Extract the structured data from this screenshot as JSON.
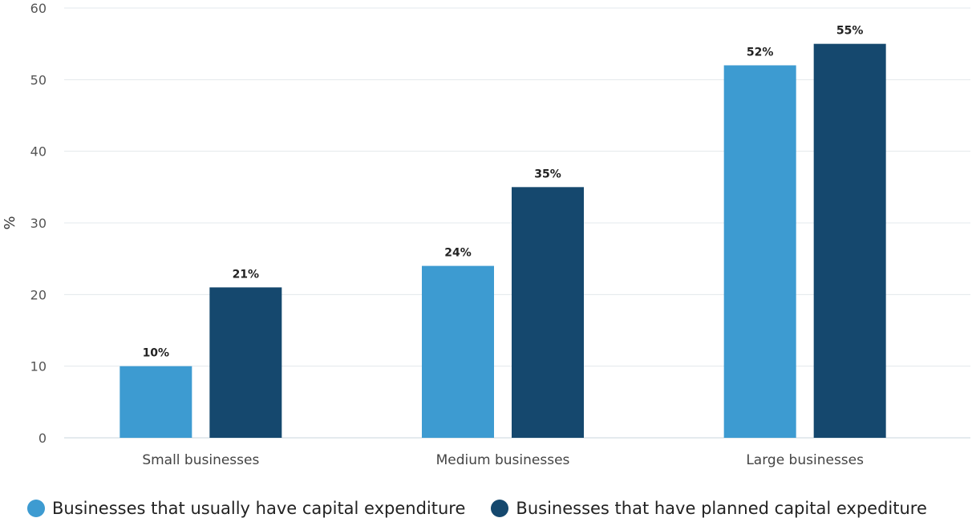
{
  "chart_data": {
    "type": "bar",
    "ylabel": "%",
    "ylim": [
      0,
      60
    ],
    "yticks": [
      0,
      10,
      20,
      30,
      40,
      50,
      60
    ],
    "grid": true,
    "legend_position": "bottom-left",
    "categories": [
      "Small businesses",
      "Medium businesses",
      "Large businesses"
    ],
    "series": [
      {
        "name": "Businesses that usually have capital expenditure",
        "color": "#3d9bd1",
        "values": [
          10,
          24,
          52
        ],
        "labels": [
          "10%",
          "24%",
          "52%"
        ]
      },
      {
        "name": "Businesses that have planned capital expediture",
        "color": "#15486e",
        "values": [
          21,
          35,
          55
        ],
        "labels": [
          "21%",
          "35%",
          "55%"
        ]
      }
    ]
  }
}
